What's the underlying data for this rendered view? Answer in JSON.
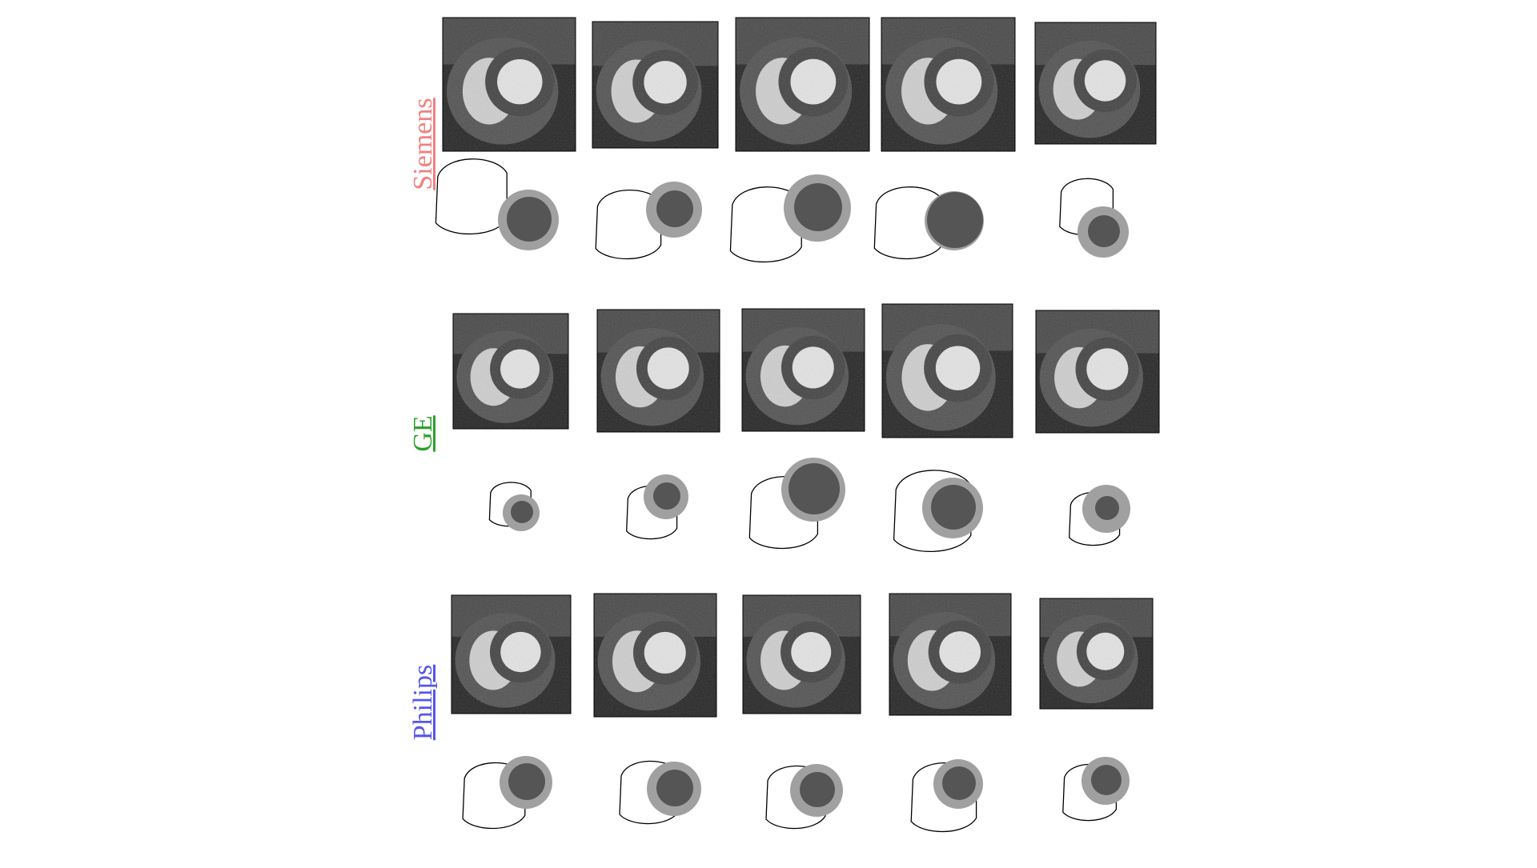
{
  "figure": {
    "background": "#ffffff",
    "rows": [
      {
        "vendor": "Siemens",
        "label_color": "#f08080",
        "scans": 5,
        "masks": 5
      },
      {
        "vendor": "GE",
        "label_color": "#2ca02c",
        "scans": 5,
        "masks": 5
      },
      {
        "vendor": "Philips",
        "label_color": "#5555ee",
        "scans": 5,
        "masks": 5
      }
    ],
    "mask_colors": {
      "left_ventricle_cavity": "#555555",
      "myocardium": "#a0a0a0",
      "right_ventricle_outline": "#000000"
    }
  }
}
